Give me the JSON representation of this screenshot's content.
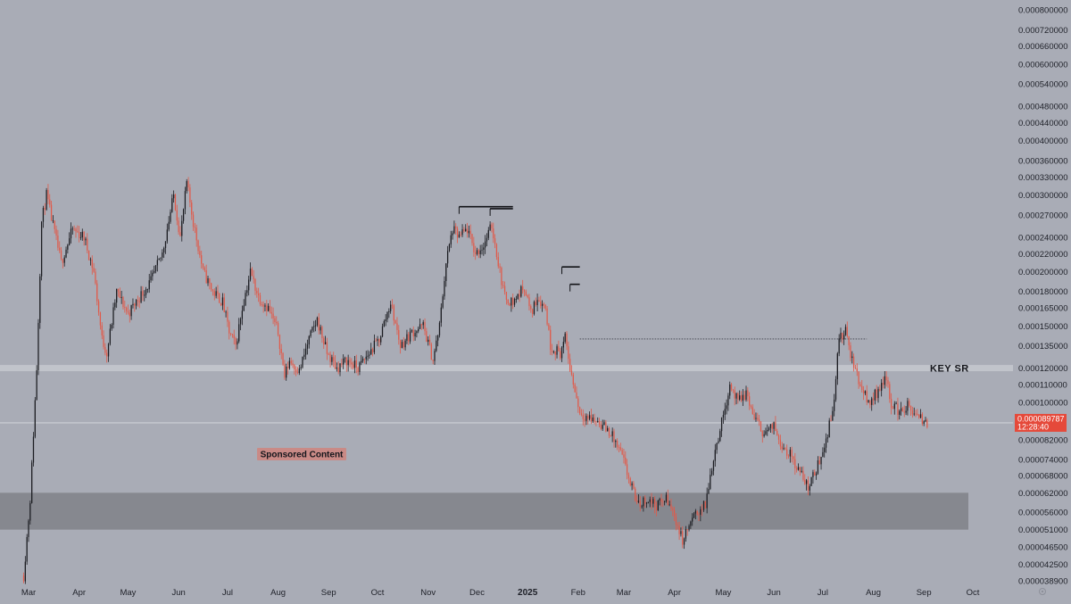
{
  "chart_data": {
    "type": "candlestick",
    "title": "",
    "y_scale": "log",
    "y_ticks": [
      "0.000800000",
      "0.000720000",
      "0.000660000",
      "0.000600000",
      "0.000540000",
      "0.000480000",
      "0.000440000",
      "0.000400000",
      "0.000360000",
      "0.000330000",
      "0.000300000",
      "0.000270000",
      "0.000240000",
      "0.000220000",
      "0.000200000",
      "0.000180000",
      "0.000165000",
      "0.000150000",
      "0.000135000",
      "0.000120000",
      "0.000110000",
      "0.000100000",
      "0.000082000",
      "0.000074000",
      "0.000068000",
      "0.000062000",
      "0.000056000",
      "0.000051000",
      "0.000046500",
      "0.000042500",
      "0.000038900"
    ],
    "x_ticks": [
      "Mar",
      "Apr",
      "May",
      "Jun",
      "Jul",
      "Aug",
      "Sep",
      "Oct",
      "Nov",
      "Dec",
      "2025",
      "Feb",
      "Mar",
      "Apr",
      "May",
      "Jun",
      "Jul",
      "Aug",
      "Sep",
      "Oct"
    ],
    "x_tick_bold": "2025",
    "price_path": [
      [
        "2024-02-27",
        4e-05
      ],
      [
        "2024-03-02",
        6e-05
      ],
      [
        "2024-03-06",
        0.00012
      ],
      [
        "2024-03-09",
        0.00026
      ],
      [
        "2024-03-12",
        0.0003
      ],
      [
        "2024-03-17",
        0.000245
      ],
      [
        "2024-03-21",
        0.00021
      ],
      [
        "2024-03-28",
        0.00025
      ],
      [
        "2024-04-04",
        0.00024
      ],
      [
        "2024-04-10",
        0.0002
      ],
      [
        "2024-04-15",
        0.00014
      ],
      [
        "2024-04-18",
        0.00013
      ],
      [
        "2024-04-24",
        0.00018
      ],
      [
        "2024-05-01",
        0.00016
      ],
      [
        "2024-05-08",
        0.000175
      ],
      [
        "2024-05-15",
        0.00019
      ],
      [
        "2024-05-22",
        0.00022
      ],
      [
        "2024-05-29",
        0.0003
      ],
      [
        "2024-06-02",
        0.00024
      ],
      [
        "2024-06-06",
        0.00032
      ],
      [
        "2024-06-10",
        0.00026
      ],
      [
        "2024-06-16",
        0.0002
      ],
      [
        "2024-06-22",
        0.00018
      ],
      [
        "2024-06-28",
        0.00017
      ],
      [
        "2024-07-02",
        0.000145
      ],
      [
        "2024-07-06",
        0.000135
      ],
      [
        "2024-07-10",
        0.000165
      ],
      [
        "2024-07-15",
        0.0002
      ],
      [
        "2024-07-20",
        0.000175
      ],
      [
        "2024-07-26",
        0.000165
      ],
      [
        "2024-08-01",
        0.000145
      ],
      [
        "2024-08-05",
        0.000115
      ],
      [
        "2024-08-08",
        0.000125
      ],
      [
        "2024-08-14",
        0.000118
      ],
      [
        "2024-08-20",
        0.00014
      ],
      [
        "2024-08-25",
        0.000155
      ],
      [
        "2024-08-31",
        0.00013
      ],
      [
        "2024-09-06",
        0.00012
      ],
      [
        "2024-09-12",
        0.000125
      ],
      [
        "2024-09-19",
        0.00012
      ],
      [
        "2024-09-26",
        0.00013
      ],
      [
        "2024-10-02",
        0.00014
      ],
      [
        "2024-10-09",
        0.00017
      ],
      [
        "2024-10-15",
        0.000135
      ],
      [
        "2024-10-22",
        0.000145
      ],
      [
        "2024-10-29",
        0.00015
      ],
      [
        "2024-11-04",
        0.000125
      ],
      [
        "2024-11-08",
        0.00015
      ],
      [
        "2024-11-12",
        0.00021
      ],
      [
        "2024-11-16",
        0.00025
      ],
      [
        "2024-11-20",
        0.00024
      ],
      [
        "2024-11-25",
        0.00025
      ],
      [
        "2024-11-30",
        0.00022
      ],
      [
        "2024-12-05",
        0.00023
      ],
      [
        "2024-12-10",
        0.000255
      ],
      [
        "2024-12-15",
        0.0002
      ],
      [
        "2024-12-18",
        0.000175
      ],
      [
        "2024-12-23",
        0.00017
      ],
      [
        "2024-12-30",
        0.000185
      ],
      [
        "2025-01-03",
        0.00016
      ],
      [
        "2025-01-07",
        0.000175
      ],
      [
        "2025-01-12",
        0.000165
      ],
      [
        "2025-01-15",
        0.000135
      ],
      [
        "2025-01-21",
        0.00013
      ],
      [
        "2025-01-24",
        0.00014
      ],
      [
        "2025-01-28",
        0.000115
      ],
      [
        "2025-02-02",
        9.5e-05
      ],
      [
        "2025-02-08",
        9.2e-05
      ],
      [
        "2025-02-14",
        9e-05
      ],
      [
        "2025-02-21",
        8.5e-05
      ],
      [
        "2025-02-28",
        7.5e-05
      ],
      [
        "2025-03-05",
        6.5e-05
      ],
      [
        "2025-03-10",
        5.8e-05
      ],
      [
        "2025-03-15",
        6e-05
      ],
      [
        "2025-03-21",
        5.8e-05
      ],
      [
        "2025-03-27",
        6e-05
      ],
      [
        "2025-04-01",
        5.5e-05
      ],
      [
        "2025-04-06",
        4.8e-05
      ],
      [
        "2025-04-10",
        5.2e-05
      ],
      [
        "2025-04-15",
        5.6e-05
      ],
      [
        "2025-04-20",
        5.8e-05
      ],
      [
        "2025-04-25",
        7.5e-05
      ],
      [
        "2025-04-30",
        9e-05
      ],
      [
        "2025-05-05",
        0.00011
      ],
      [
        "2025-05-10",
        0.0001
      ],
      [
        "2025-05-15",
        0.000105
      ],
      [
        "2025-05-20",
        9.2e-05
      ],
      [
        "2025-05-26",
        8.5e-05
      ],
      [
        "2025-06-01",
        8.8e-05
      ],
      [
        "2025-06-06",
        8e-05
      ],
      [
        "2025-06-12",
        7.5e-05
      ],
      [
        "2025-06-18",
        6.8e-05
      ],
      [
        "2025-06-22",
        6.4e-05
      ],
      [
        "2025-06-27",
        7e-05
      ],
      [
        "2025-07-02",
        8e-05
      ],
      [
        "2025-07-07",
        9.5e-05
      ],
      [
        "2025-07-11",
        0.00014
      ],
      [
        "2025-07-15",
        0.000145
      ],
      [
        "2025-07-19",
        0.000125
      ],
      [
        "2025-07-24",
        0.00011
      ],
      [
        "2025-07-29",
        0.0001
      ],
      [
        "2025-08-03",
        0.000105
      ],
      [
        "2025-08-08",
        0.000115
      ],
      [
        "2025-08-12",
        0.0001
      ],
      [
        "2025-08-17",
        9.5e-05
      ],
      [
        "2025-08-22",
        9.8e-05
      ],
      [
        "2025-08-28",
        9.2e-05
      ],
      [
        "2025-09-03",
        8.9787e-05
      ]
    ],
    "annotations": {
      "key_sr": {
        "label": "KEY SR",
        "price": 0.00012
      },
      "demand_zone": {
        "low": 5.1e-05,
        "high": 6.2e-05
      },
      "current_price_line": 8.9787e-05,
      "resistance_dotted": {
        "price": 0.00014,
        "from": "2025-02-02",
        "to": "2025-07-28"
      },
      "top_levels": [
        {
          "price": 0.000282,
          "from": "2024-11-20",
          "to": "2024-12-23"
        },
        {
          "price": 0.000279,
          "from": "2024-12-09",
          "to": "2024-12-23"
        },
        {
          "price": 0.000205,
          "from": "2025-01-22",
          "to": "2025-02-02"
        },
        {
          "price": 0.000187,
          "from": "2025-01-27",
          "to": "2025-02-02"
        }
      ],
      "sponsored": "Sponsored Content"
    },
    "current_price": {
      "label": "0.000089787",
      "countdown": "12:28:40",
      "color": "#e5493a"
    },
    "colors": {
      "up": "#1c1d22",
      "down": "#e05a4a",
      "zone": "#86888f",
      "sr_band": "#c6c8cf",
      "background": "#a9acb6"
    }
  }
}
